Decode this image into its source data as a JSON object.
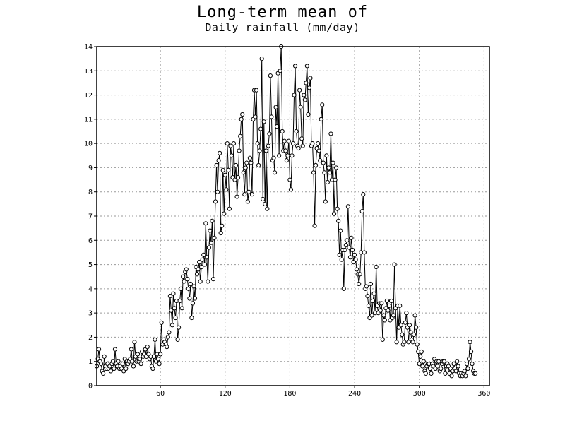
{
  "chart_data": {
    "type": "line",
    "title": "Long-term mean of",
    "subtitle": "Daily rainfall (mm/day)",
    "xlabel": "",
    "ylabel": "",
    "xlim": [
      1,
      365
    ],
    "ylim": [
      0,
      14
    ],
    "xticks": [
      60,
      120,
      180,
      240,
      300,
      360
    ],
    "yticks": [
      0,
      1,
      2,
      3,
      4,
      5,
      6,
      7,
      8,
      9,
      10,
      11,
      12,
      13,
      14
    ],
    "grid": true,
    "marker": "open-circle",
    "series": [
      {
        "values": [
          0.8,
          1.1,
          1.5,
          1.0,
          0.9,
          0.6,
          0.5,
          1.2,
          0.8,
          0.7,
          0.9,
          0.7,
          0.8,
          0.6,
          0.9,
          1.0,
          0.7,
          1.5,
          0.9,
          0.8,
          1.0,
          0.7,
          0.8,
          0.7,
          0.9,
          0.6,
          1.1,
          0.7,
          1.0,
          0.9,
          1.0,
          1.1,
          1.5,
          1.0,
          0.8,
          1.8,
          1.2,
          1.0,
          1.3,
          1.0,
          1.1,
          0.9,
          1.4,
          1.2,
          1.3,
          1.5,
          1.2,
          1.6,
          1.3,
          1.1,
          1.2,
          0.8,
          0.7,
          1.2,
          1.9,
          1.0,
          1.3,
          1.1,
          0.9,
          1.3,
          2.6,
          1.7,
          1.9,
          1.8,
          1.7,
          1.6,
          2.0,
          2.2,
          3.7,
          3.1,
          2.5,
          3.8,
          3.2,
          2.8,
          3.5,
          1.9,
          2.4,
          3.5,
          4.0,
          3.2,
          4.5,
          4.3,
          4.7,
          4.8,
          4.4,
          4.0,
          3.6,
          4.2,
          2.8,
          3.4,
          4.1,
          3.6,
          4.9,
          4.6,
          4.8,
          5.1,
          4.3,
          4.9,
          5.2,
          5.4,
          5.0,
          6.7,
          5.3,
          4.3,
          5.7,
          6.4,
          5.9,
          6.8,
          4.4,
          6.1,
          7.6,
          9.1,
          8.0,
          9.3,
          9.6,
          6.3,
          6.6,
          8.9,
          7.1,
          8.7,
          8.1,
          10.0,
          8.9,
          7.3,
          9.9,
          9.5,
          8.6,
          10.0,
          8.5,
          9.1,
          7.8,
          8.6,
          9.7,
          10.3,
          11.0,
          11.2,
          8.8,
          7.9,
          9.0,
          9.2,
          7.6,
          8.0,
          9.4,
          9.2,
          7.9,
          11.0,
          12.2,
          11.1,
          12.2,
          10.0,
          9.1,
          9.7,
          10.6,
          13.5,
          7.7,
          10.9,
          7.5,
          9.7,
          7.3,
          9.9,
          10.4,
          12.8,
          11.1,
          9.3,
          9.4,
          8.8,
          11.5,
          10.7,
          12.9,
          9.5,
          13.0,
          14.0,
          10.5,
          9.7,
          10.1,
          9.7,
          9.3,
          9.5,
          10.1,
          8.5,
          8.1,
          9.5,
          10.0,
          12.0,
          13.2,
          10.5,
          9.9,
          9.8,
          12.2,
          11.5,
          10.2,
          9.9,
          12.0,
          11.8,
          12.5,
          13.2,
          11.2,
          12.3,
          12.7,
          9.9,
          10.0,
          8.8,
          6.6,
          9.1,
          9.8,
          10.0,
          9.7,
          9.3,
          11.0,
          11.6,
          9.2,
          8.8,
          7.6,
          9.5,
          8.4,
          9.0,
          8.8,
          10.4,
          8.5,
          9.2,
          7.1,
          8.5,
          9.0,
          7.3,
          6.8,
          5.4,
          6.4,
          5.2,
          5.6,
          4.0,
          5.6,
          5.8,
          6.0,
          7.4,
          5.7,
          5.3,
          6.1,
          5.6,
          5.1,
          5.4,
          5.2,
          4.8,
          4.6,
          4.2,
          4.6,
          5.5,
          7.2,
          7.9,
          5.5,
          4.0,
          4.1,
          3.7,
          3.3,
          2.8,
          4.2,
          2.9,
          3.5,
          3.8,
          3.0,
          4.9,
          3.3,
          3.0,
          3.4,
          3.1,
          3.4,
          1.9,
          2.9,
          2.7,
          3.2,
          3.5,
          3.1,
          3.3,
          2.7,
          3.5,
          2.8,
          2.9,
          5.0,
          3.2,
          1.8,
          3.3,
          2.4,
          3.3,
          2.5,
          2.1,
          1.7,
          1.8,
          2.6,
          3.0,
          2.4,
          1.8,
          2.5,
          2.2,
          1.9,
          1.8,
          2.1,
          2.9,
          2.4,
          1.7,
          1.4,
          0.9,
          1.2,
          1.4,
          0.8,
          1.0,
          0.6,
          0.5,
          0.8,
          0.9,
          0.9,
          0.7,
          0.5,
          0.9,
          0.8,
          1.1,
          0.7,
          1.0,
          0.8,
          1.0,
          0.6,
          0.7,
          0.9,
          1.0,
          1.0,
          0.5,
          0.8,
          0.9,
          0.8,
          0.5,
          0.7,
          0.4,
          0.6,
          0.9,
          0.7,
          0.6,
          1.0,
          0.8,
          0.5,
          0.4,
          0.5,
          0.4,
          0.5,
          0.6,
          0.4,
          0.9,
          0.7,
          1.1,
          1.8,
          1.4,
          0.9,
          0.6,
          0.5,
          0.5
        ]
      }
    ]
  }
}
